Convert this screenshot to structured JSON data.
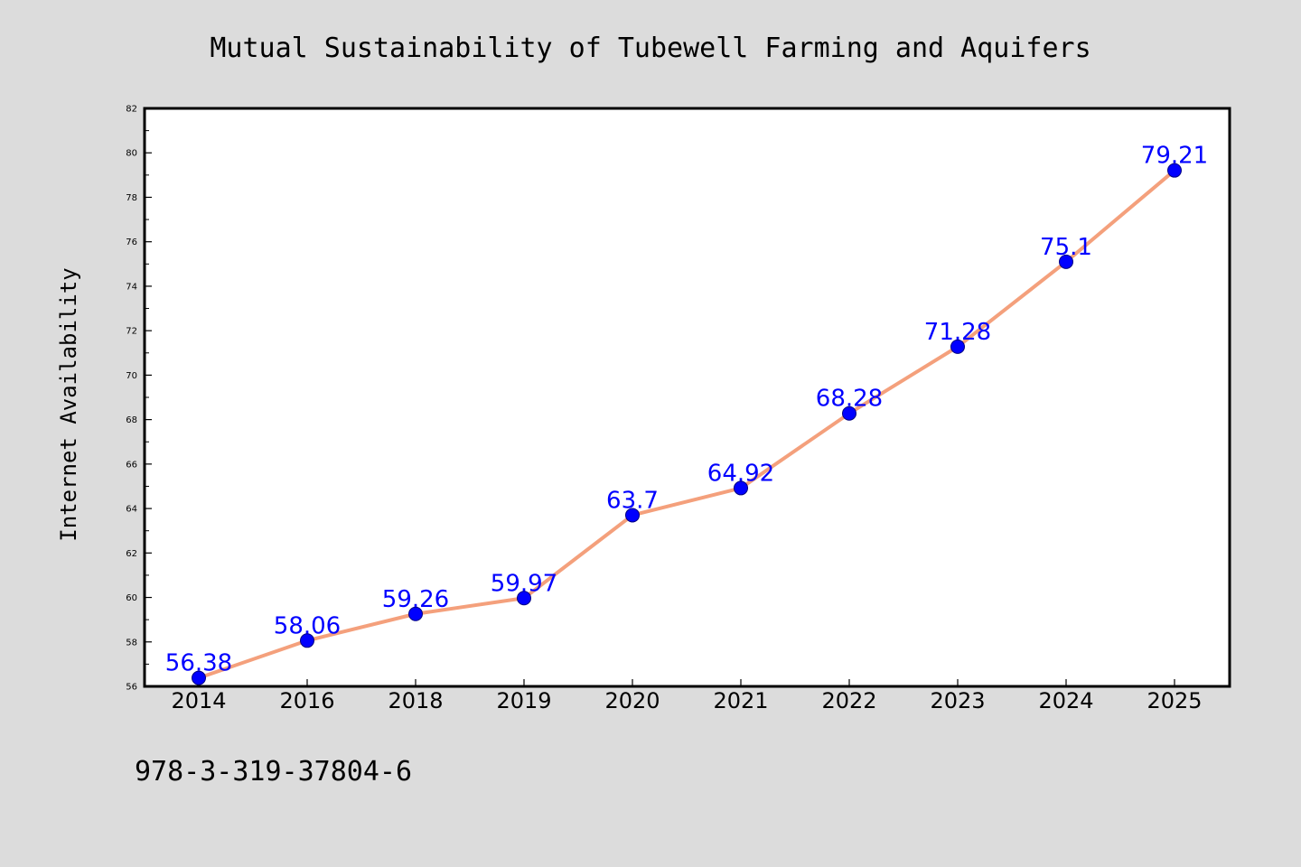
{
  "chart_data": {
    "type": "line",
    "title": "Mutual Sustainability of Tubewell Farming and Aquifers",
    "xlabel": "",
    "ylabel": "Internet Availability",
    "categories": [
      "2014",
      "2016",
      "2018",
      "2019",
      "2020",
      "2021",
      "2022",
      "2023",
      "2024",
      "2025"
    ],
    "series": [
      {
        "values": [
          56.38,
          58.06,
          59.26,
          59.97,
          63.7,
          64.92,
          68.28,
          71.28,
          75.1,
          79.21
        ]
      }
    ],
    "data_labels": [
      "56.38",
      "58.06",
      "59.26",
      "59.97",
      "63.7",
      "64.92",
      "68.28",
      "71.28",
      "75.1",
      "79.21"
    ],
    "ylim": [
      56,
      82
    ],
    "yticks": [
      56,
      58,
      60,
      62,
      64,
      66,
      68,
      70,
      72,
      74,
      76,
      78,
      80,
      82
    ],
    "grid": false,
    "legend": "none"
  },
  "footer": {
    "isbn": "978-3-319-37804-6"
  },
  "colors": {
    "page_background": "#dcdcdc",
    "plot_background": "#ffffff",
    "line": "#f4a07c",
    "marker": "#0000ff",
    "marker_edge": "#000080",
    "data_label": "#0000ff",
    "axis": "#000000"
  }
}
